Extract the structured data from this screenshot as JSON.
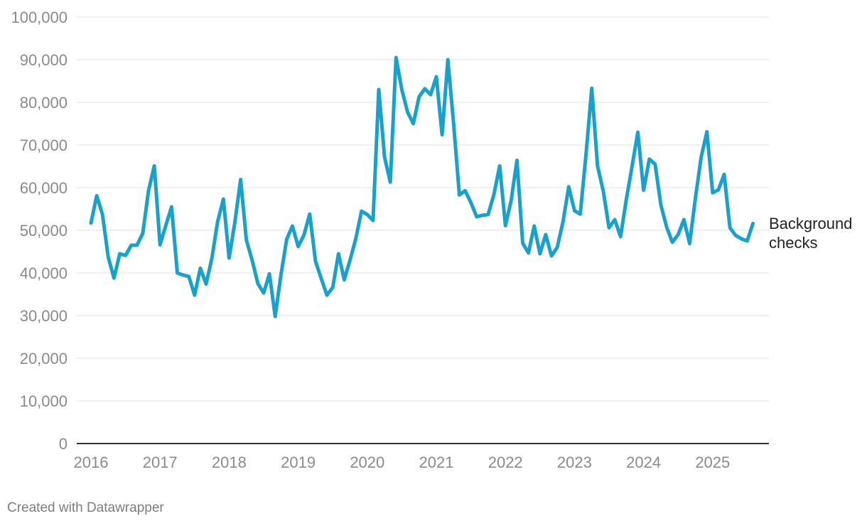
{
  "chart_data": {
    "type": "line",
    "title": "",
    "xlabel": "",
    "ylabel": "",
    "ylim": [
      0,
      100000
    ],
    "xlim": [
      "2016-01",
      "2025-10"
    ],
    "grid": true,
    "y_ticks": [
      0,
      10000,
      20000,
      30000,
      40000,
      50000,
      60000,
      70000,
      80000,
      90000,
      100000
    ],
    "y_tick_labels": [
      "0",
      "10,000",
      "20,000",
      "30,000",
      "40,000",
      "50,000",
      "60,000",
      "70,000",
      "80,000",
      "90,000",
      "100,000"
    ],
    "x_tick_labels": [
      "2016",
      "2017",
      "2018",
      "2019",
      "2020",
      "2021",
      "2022",
      "2023",
      "2024",
      "2025"
    ],
    "series": [
      {
        "name": "Background checks",
        "color": "#18a1cd",
        "x": [
          "2016-01",
          "2016-02",
          "2016-03",
          "2016-04",
          "2016-05",
          "2016-06",
          "2016-07",
          "2016-08",
          "2016-09",
          "2016-10",
          "2016-11",
          "2016-12",
          "2017-01",
          "2017-02",
          "2017-03",
          "2017-04",
          "2017-05",
          "2017-06",
          "2017-07",
          "2017-08",
          "2017-09",
          "2017-10",
          "2017-11",
          "2017-12",
          "2018-01",
          "2018-02",
          "2018-03",
          "2018-04",
          "2018-05",
          "2018-06",
          "2018-07",
          "2018-08",
          "2018-09",
          "2018-10",
          "2018-11",
          "2018-12",
          "2019-01",
          "2019-02",
          "2019-03",
          "2019-04",
          "2019-05",
          "2019-06",
          "2019-07",
          "2019-08",
          "2019-09",
          "2019-10",
          "2019-11",
          "2019-12",
          "2020-01",
          "2020-02",
          "2020-03",
          "2020-04",
          "2020-05",
          "2020-06",
          "2020-07",
          "2020-08",
          "2020-09",
          "2020-10",
          "2020-11",
          "2020-12",
          "2021-01",
          "2021-02",
          "2021-03",
          "2021-04",
          "2021-05",
          "2021-06",
          "2021-07",
          "2021-08",
          "2021-09",
          "2021-10",
          "2021-11",
          "2021-12",
          "2022-01",
          "2022-02",
          "2022-03",
          "2022-04",
          "2022-05",
          "2022-06",
          "2022-07",
          "2022-08",
          "2022-09",
          "2022-10",
          "2022-11",
          "2022-12",
          "2023-01",
          "2023-02",
          "2023-03",
          "2023-04",
          "2023-05",
          "2023-06",
          "2023-07",
          "2023-08",
          "2023-09",
          "2023-10",
          "2023-11",
          "2023-12",
          "2024-01",
          "2024-02",
          "2024-03",
          "2024-04",
          "2024-05",
          "2024-06",
          "2024-07",
          "2024-08",
          "2024-09",
          "2024-10",
          "2024-11",
          "2024-12",
          "2025-01",
          "2025-02",
          "2025-03",
          "2025-04",
          "2025-05",
          "2025-06",
          "2025-07",
          "2025-08"
        ],
        "values": [
          51700,
          58100,
          53700,
          43700,
          38800,
          44500,
          44100,
          46500,
          46500,
          49300,
          59300,
          65100,
          46600,
          51100,
          55500,
          40000,
          39500,
          39200,
          34800,
          41100,
          37400,
          43400,
          52000,
          57300,
          43500,
          51900,
          61900,
          47700,
          43000,
          37500,
          35300,
          39800,
          29800,
          39500,
          47900,
          51000,
          46200,
          48900,
          53800,
          42800,
          38700,
          34800,
          36600,
          44500,
          38400,
          43000,
          48000,
          54500,
          53700,
          52300,
          83000,
          67200,
          61300,
          90500,
          83000,
          77700,
          75000,
          81300,
          83200,
          81800,
          86000,
          72400,
          90000,
          75000,
          58300,
          59300,
          56500,
          53200,
          53500,
          53700,
          58400,
          65100,
          51100,
          57000,
          66400,
          47000,
          44700,
          51000,
          44500,
          49000,
          44000,
          46000,
          52000,
          60200,
          54600,
          53800,
          67800,
          83300,
          65100,
          59200,
          50600,
          52500,
          48500,
          57200,
          65000,
          73000,
          59400,
          66700,
          65500,
          56000,
          50800,
          47200,
          49000,
          52500,
          46900,
          57500,
          67100,
          73100,
          58800,
          59500,
          63100,
          50600,
          48800,
          48000,
          47500,
          51600
        ]
      }
    ],
    "series_label_lines": [
      "Background",
      "checks"
    ]
  },
  "footer": {
    "credit": "Created with Datawrapper"
  }
}
